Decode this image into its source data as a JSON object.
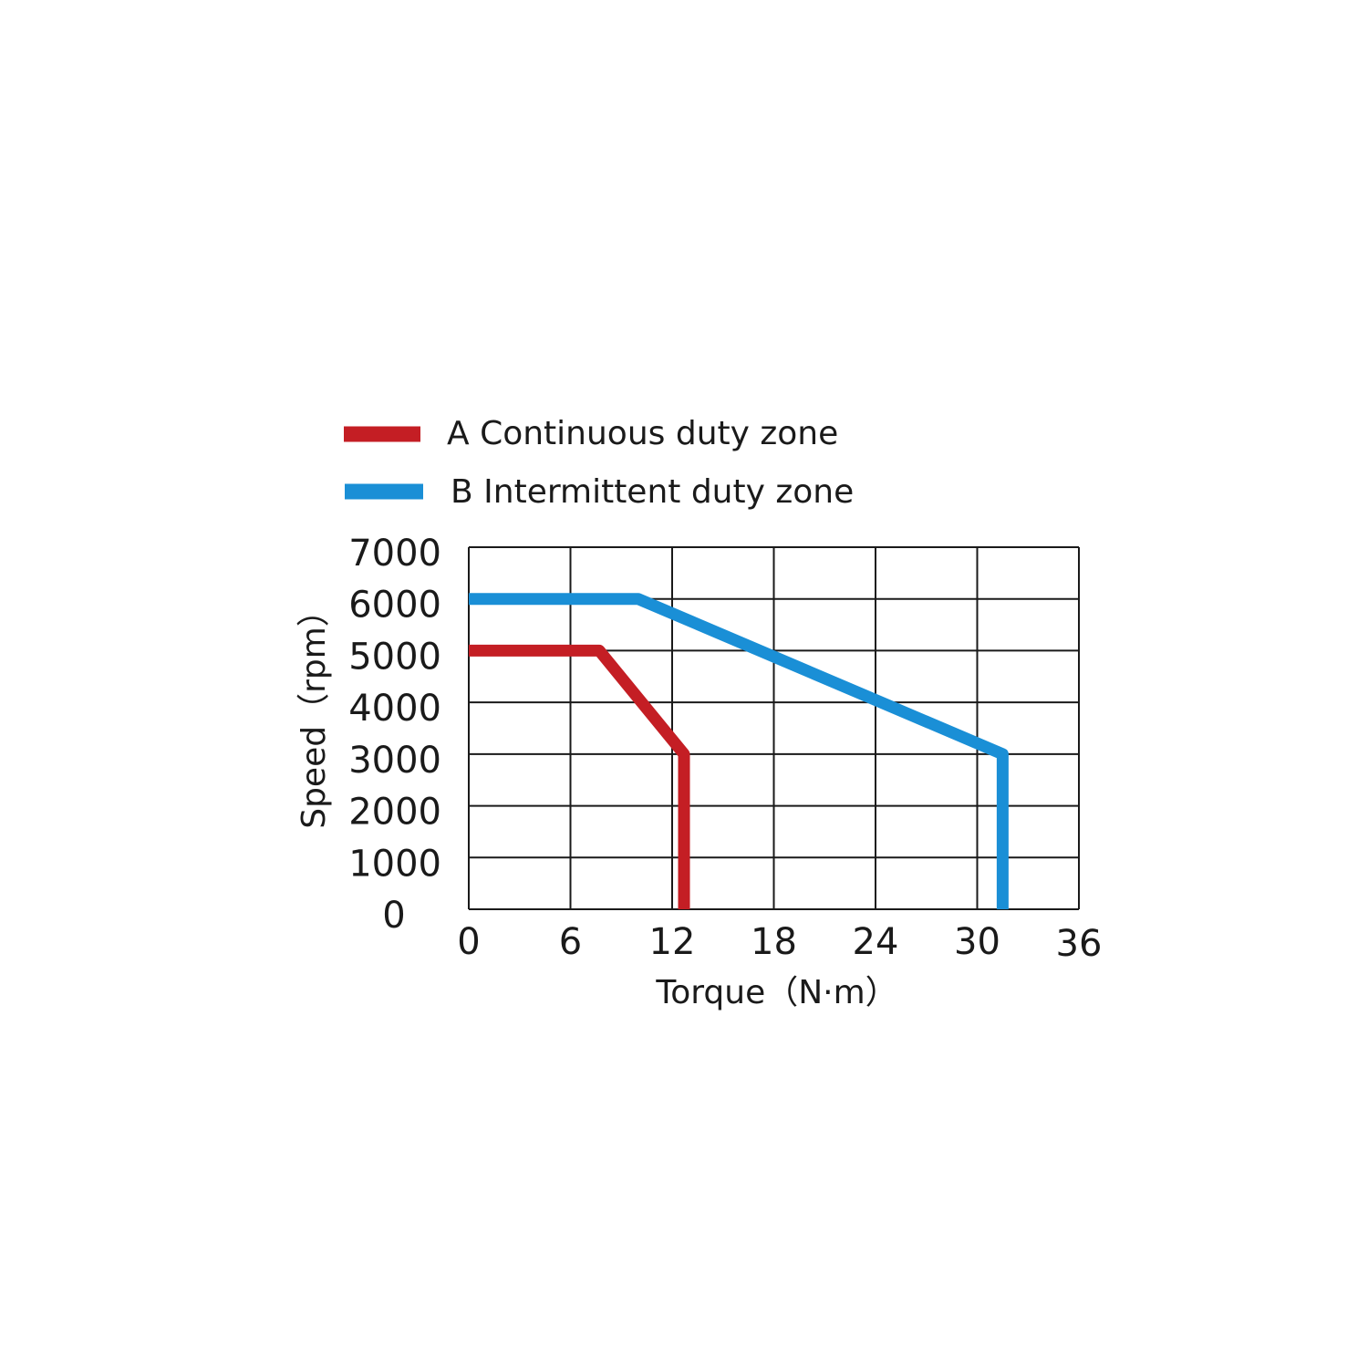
{
  "chart_data": {
    "type": "line",
    "title": "",
    "xlabel": "Torque（N·m）",
    "ylabel": "Speed（rpm）",
    "xlim": [
      0,
      36
    ],
    "ylim": [
      0,
      7000
    ],
    "x_ticks": [
      0,
      6,
      12,
      18,
      24,
      30,
      36
    ],
    "y_ticks": [
      0,
      1000,
      2000,
      3000,
      4000,
      5000,
      6000,
      7000
    ],
    "grid": true,
    "legend_position": "top",
    "series": [
      {
        "name": "A Continuous duty zone",
        "color": "#c41e24",
        "points": [
          [
            0,
            5000
          ],
          [
            7.7,
            5000
          ],
          [
            12.7,
            3000
          ],
          [
            12.7,
            0
          ]
        ]
      },
      {
        "name": "B Intermittent duty zone",
        "color": "#1a8fd6",
        "points": [
          [
            0,
            6000
          ],
          [
            10,
            6000
          ],
          [
            31.5,
            3000
          ],
          [
            31.5,
            0
          ]
        ]
      }
    ]
  }
}
